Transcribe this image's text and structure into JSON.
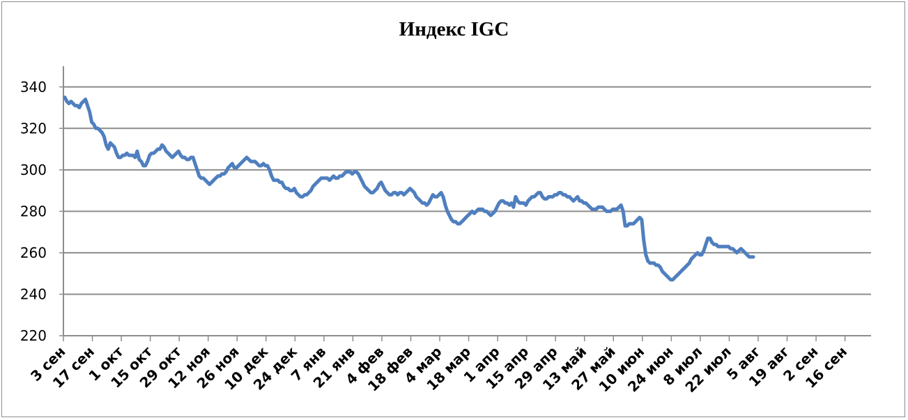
{
  "chart_data": {
    "type": "line",
    "title": "Индекс IGC",
    "xlabel": "",
    "ylabel": "",
    "ylim": [
      220,
      350
    ],
    "yticks": [
      220,
      240,
      260,
      280,
      300,
      320,
      340
    ],
    "grid": true,
    "legend": "none",
    "line_color": "#4f7fbf",
    "x_tick_labels": [
      "3 сен",
      "17 сен",
      "1 окт",
      "15 окт",
      "29 окт",
      "12 ноя",
      "26 ноя",
      "10 дек",
      "24 дек",
      "7 янв",
      "21 янв",
      "4 фев",
      "18 фев",
      "4 мар",
      "18 мар",
      "1 апр",
      "15 апр",
      "29 апр",
      "13 май",
      "27 май",
      "10 июн",
      "24 июн",
      "8 июл",
      "22 июл",
      "5 авг",
      "19 авг",
      "2 сен",
      "16 сен"
    ],
    "series": [
      {
        "x_step_days": 1,
        "values": [
          335,
          333,
          332,
          333,
          332,
          331,
          331,
          330,
          332,
          333,
          334,
          331,
          328,
          323,
          322,
          320,
          320,
          319,
          318,
          316,
          312,
          310,
          313,
          312,
          311,
          308,
          306,
          306,
          307,
          307,
          308,
          307,
          307,
          307,
          306,
          309,
          305,
          304,
          302,
          302,
          304,
          307,
          308,
          308,
          309,
          310,
          310,
          312,
          311,
          309,
          308,
          307,
          306,
          307,
          308,
          309,
          307,
          306,
          306,
          305,
          305,
          306,
          306,
          303,
          300,
          297,
          296,
          296,
          295,
          294,
          293,
          294,
          295,
          296,
          297,
          297,
          298,
          298,
          299,
          301,
          302,
          303,
          301,
          301,
          302,
          303,
          304,
          305,
          306,
          305,
          304,
          304,
          304,
          303,
          302,
          302,
          303,
          302,
          302,
          300,
          297,
          295,
          295,
          295,
          294,
          294,
          292,
          291,
          291,
          290,
          290,
          291,
          289,
          288,
          287,
          287,
          288,
          288,
          289,
          290,
          292,
          293,
          294,
          295,
          296,
          296,
          296,
          296,
          295,
          296,
          297,
          296,
          296,
          297,
          297,
          298,
          299,
          299,
          299,
          298,
          299,
          299,
          298,
          296,
          294,
          292,
          291,
          290,
          289,
          289,
          290,
          291,
          293,
          294,
          292,
          290,
          289,
          288,
          288,
          289,
          289,
          288,
          289,
          289,
          288,
          289,
          290,
          291,
          290,
          289,
          287,
          286,
          285,
          284,
          284,
          283,
          284,
          286,
          288,
          287,
          287,
          288,
          289,
          287,
          283,
          280,
          278,
          276,
          275,
          275,
          274,
          274,
          275,
          276,
          277,
          278,
          279,
          280,
          279,
          280,
          281,
          281,
          281,
          280,
          280,
          279,
          278,
          279,
          280,
          282,
          284,
          285,
          285,
          284,
          284,
          283,
          284,
          282,
          287,
          285,
          284,
          284,
          284,
          283,
          285,
          286,
          287,
          287,
          288,
          289,
          289,
          287,
          286,
          286,
          287,
          287,
          287,
          288,
          288,
          289,
          289,
          288,
          288,
          287,
          287,
          286,
          285,
          286,
          287,
          285,
          285,
          284,
          284,
          283,
          282,
          281,
          281,
          281,
          282,
          282,
          282,
          281,
          280,
          280,
          280,
          281,
          281,
          281,
          282,
          283,
          280,
          273,
          273,
          274,
          274,
          274,
          275,
          276,
          277,
          276,
          266,
          259,
          256,
          255,
          255,
          255,
          254,
          254,
          253,
          251,
          250,
          249,
          248,
          247,
          247,
          248,
          249,
          250,
          251,
          252,
          253,
          254,
          255,
          257,
          258,
          259,
          260,
          259,
          259,
          261,
          264,
          267,
          267,
          265,
          264,
          264,
          263,
          263,
          263,
          263,
          263,
          263,
          262,
          262,
          261,
          260,
          261,
          262,
          261,
          260,
          259,
          258,
          258,
          258
        ]
      }
    ]
  }
}
